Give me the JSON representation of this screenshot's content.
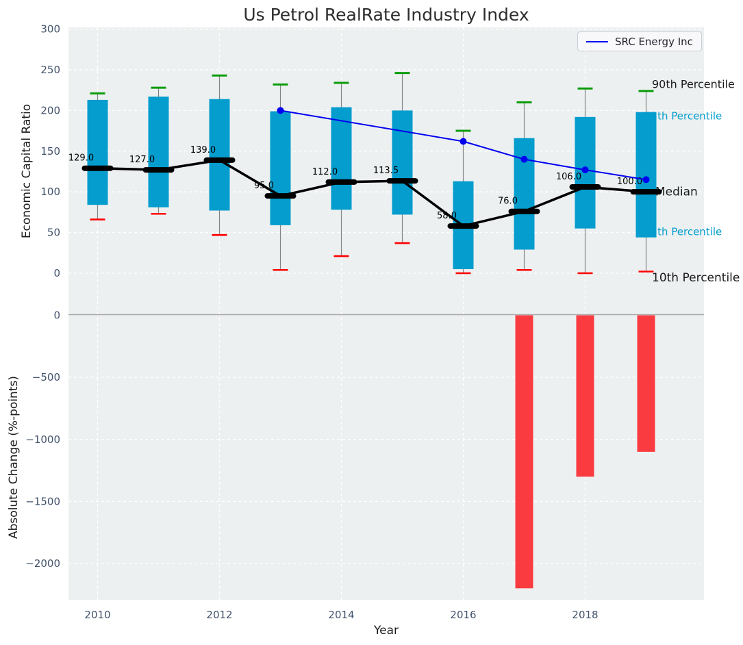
{
  "title": "Us Petrol RealRate Industry Index",
  "legend": {
    "label": "SRC Energy Inc"
  },
  "axes": {
    "top": {
      "ylabel": "Economic Capital Ratio",
      "yticks": [
        300,
        250,
        200,
        150,
        100,
        50,
        0
      ]
    },
    "bottom": {
      "ylabel": "Absolute Change (%-points)",
      "yticks": [
        0,
        -500,
        -1000,
        -1500,
        -2000
      ]
    },
    "xlabel": "Year",
    "xticks": [
      2010,
      2012,
      2014,
      2016,
      2018
    ]
  },
  "annotations": [
    {
      "text": "90th Percentile"
    },
    {
      "text": "75th Percentile"
    },
    {
      "text": "Median"
    },
    {
      "text": "25th Percentile"
    },
    {
      "text": "10th Percentile"
    }
  ],
  "colors": {
    "panel_bg": "#edf0f1",
    "grid": "#ffffff",
    "box": "#049dce",
    "box_label_text": "#049dce",
    "p90_cap": "#0a9c0a",
    "p10_cap": "#fe0000",
    "whisker": "#848484",
    "median": "#000000",
    "src_line": "#0000f0",
    "change_bar": "#fa3b40",
    "zero_line": "#a8a8a8",
    "tick_text": "#42526b",
    "text": "#1a1a1a"
  },
  "chart_data": [
    {
      "type": "box-whisker+line",
      "title": "Us Petrol RealRate Industry Index",
      "xlabel": "Year",
      "ylabel": "Economic Capital Ratio",
      "ylim": [
        -50,
        302
      ],
      "grid": true,
      "x": [
        2010,
        2011,
        2012,
        2013,
        2014,
        2015,
        2016,
        2017,
        2018,
        2019
      ],
      "series": [
        {
          "name": "90th Percentile",
          "values": [
            221,
            228,
            243,
            232,
            234,
            246,
            175,
            210,
            227,
            224
          ]
        },
        {
          "name": "75th Percentile",
          "values": [
            213,
            217,
            214,
            199,
            204,
            200,
            113,
            166,
            192,
            198
          ]
        },
        {
          "name": "Median",
          "values": [
            129,
            127,
            139,
            95,
            112,
            113.5,
            58,
            76,
            106,
            100
          ]
        },
        {
          "name": "25th Percentile",
          "values": [
            84,
            81,
            77,
            59,
            78,
            72,
            5,
            29,
            55,
            44
          ]
        },
        {
          "name": "10th Percentile",
          "values": [
            66,
            73,
            47,
            4,
            21,
            37,
            0,
            4,
            0,
            2
          ]
        },
        {
          "name": "SRC Energy Inc",
          "x": [
            2013,
            2016,
            2017,
            2018,
            2019
          ],
          "values": [
            200,
            162,
            140,
            127,
            115
          ]
        }
      ],
      "median_labels": [
        "129.0",
        "127.0",
        "139.0",
        "95.0",
        "112.0",
        "113.5",
        "58.0",
        "76.0",
        "106.0",
        "100.0"
      ],
      "legend_position": "upper right"
    },
    {
      "type": "bar",
      "xlabel": "Year",
      "ylabel": "Absolute Change (%-points)",
      "ylim": [
        -2300,
        30
      ],
      "grid": true,
      "categories": [
        2017,
        2018,
        2019
      ],
      "values": [
        -2200,
        -1300,
        -1100
      ]
    }
  ]
}
